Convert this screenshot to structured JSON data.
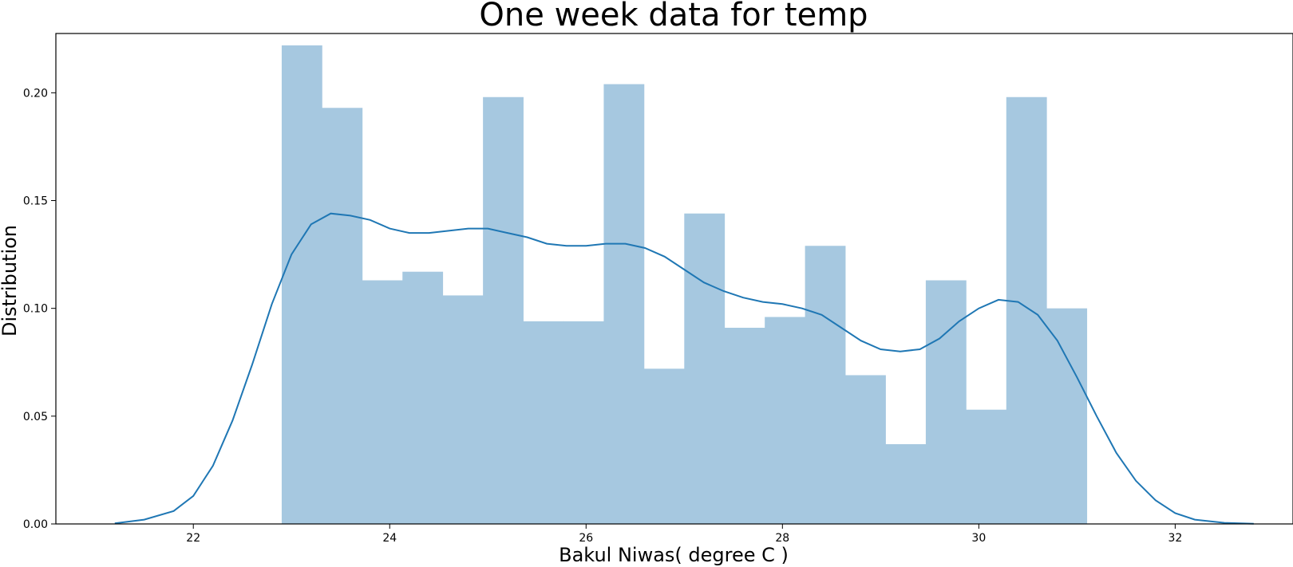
{
  "chart_data": {
    "type": "bar",
    "title": "One week data for temp",
    "xlabel": "Bakul Niwas( degree C )",
    "ylabel": "Distribution",
    "xlim": [
      20.6,
      33.2
    ],
    "ylim": [
      0,
      0.2275
    ],
    "grid": false,
    "legend": "none",
    "xticks": [
      {
        "value": 22,
        "label": "22"
      },
      {
        "value": 24,
        "label": "24"
      },
      {
        "value": 26,
        "label": "26"
      },
      {
        "value": 28,
        "label": "28"
      },
      {
        "value": 30,
        "label": "30"
      },
      {
        "value": 32,
        "label": "32"
      }
    ],
    "yticks": [
      {
        "value": 0.0,
        "label": "0.00"
      },
      {
        "value": 0.05,
        "label": "0.05"
      },
      {
        "value": 0.1,
        "label": "0.10"
      },
      {
        "value": 0.15,
        "label": "0.15"
      },
      {
        "value": 0.2,
        "label": "0.20"
      }
    ],
    "bar_color": "#a6c8e0",
    "line_color": "#1f77b4",
    "histogram": {
      "bin_edges": [
        22.9,
        23.31,
        23.72,
        24.13,
        24.54,
        24.95,
        25.36,
        25.77,
        26.18,
        26.59,
        27.0,
        27.41,
        27.82,
        28.23,
        28.64,
        29.05,
        29.46,
        29.87,
        30.28,
        30.69,
        31.1
      ],
      "values": [
        0.222,
        0.193,
        0.113,
        0.117,
        0.106,
        0.198,
        0.094,
        0.094,
        0.204,
        0.072,
        0.144,
        0.091,
        0.096,
        0.129,
        0.069,
        0.037,
        0.113,
        0.053,
        0.198,
        0.1
      ]
    },
    "kde": {
      "x": [
        21.2,
        21.5,
        21.8,
        22.0,
        22.2,
        22.4,
        22.6,
        22.8,
        23.0,
        23.2,
        23.4,
        23.6,
        23.8,
        24.0,
        24.2,
        24.4,
        24.6,
        24.8,
        25.0,
        25.2,
        25.4,
        25.6,
        25.8,
        26.0,
        26.2,
        26.4,
        26.6,
        26.8,
        27.0,
        27.2,
        27.4,
        27.6,
        27.8,
        28.0,
        28.2,
        28.4,
        28.6,
        28.8,
        29.0,
        29.2,
        29.4,
        29.6,
        29.8,
        30.0,
        30.2,
        30.4,
        30.6,
        30.8,
        31.0,
        31.2,
        31.4,
        31.6,
        31.8,
        32.0,
        32.2,
        32.5,
        32.8
      ],
      "y": [
        0.0003,
        0.002,
        0.006,
        0.013,
        0.027,
        0.048,
        0.074,
        0.102,
        0.125,
        0.139,
        0.144,
        0.143,
        0.141,
        0.137,
        0.135,
        0.135,
        0.136,
        0.137,
        0.137,
        0.135,
        0.133,
        0.13,
        0.129,
        0.129,
        0.13,
        0.13,
        0.128,
        0.124,
        0.118,
        0.112,
        0.108,
        0.105,
        0.103,
        0.102,
        0.1,
        0.097,
        0.091,
        0.085,
        0.081,
        0.08,
        0.081,
        0.086,
        0.094,
        0.1,
        0.104,
        0.103,
        0.097,
        0.085,
        0.068,
        0.05,
        0.033,
        0.02,
        0.011,
        0.005,
        0.002,
        0.0005,
        0.0001
      ]
    }
  }
}
